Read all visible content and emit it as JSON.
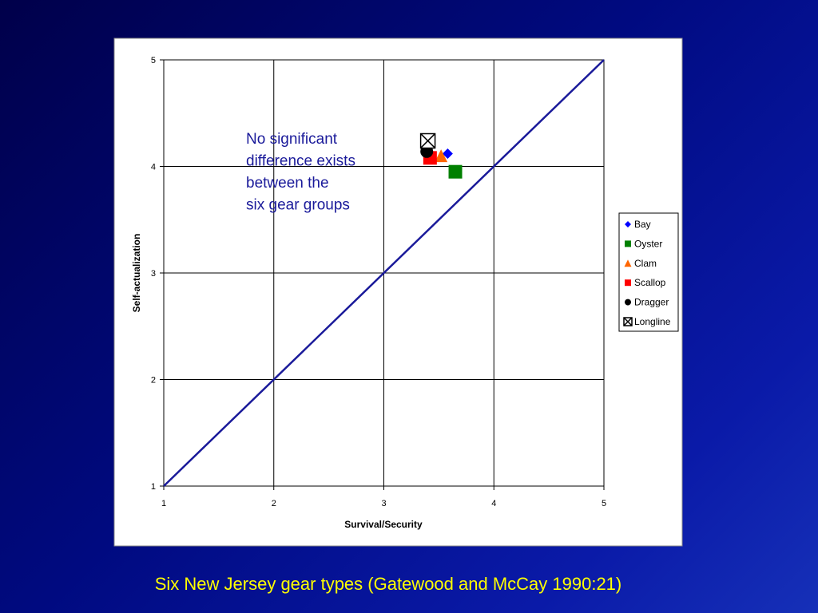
{
  "chart_data": {
    "type": "scatter",
    "xlabel": "Survival/Security",
    "ylabel": "Self-actualization",
    "xlim": [
      1,
      5
    ],
    "ylim": [
      1,
      5
    ],
    "xticks": [
      1,
      2,
      3,
      4,
      5
    ],
    "yticks": [
      1,
      2,
      3,
      4,
      5
    ],
    "grid": true,
    "legend": "right",
    "series": [
      {
        "name": "Bay",
        "color": "#0000ff",
        "marker": "diamond",
        "x": [
          3.58
        ],
        "values": [
          4.12
        ]
      },
      {
        "name": "Oyster",
        "color": "#008000",
        "marker": "square",
        "x": [
          3.65
        ],
        "values": [
          3.95
        ]
      },
      {
        "name": "Clam",
        "color": "#ff6600",
        "marker": "triangle",
        "x": [
          3.52
        ],
        "values": [
          4.1
        ]
      },
      {
        "name": "Scallop",
        "color": "#ff0000",
        "marker": "square",
        "x": [
          3.42
        ],
        "values": [
          4.08
        ]
      },
      {
        "name": "Dragger",
        "color": "#000000",
        "marker": "circle",
        "x": [
          3.39
        ],
        "values": [
          4.14
        ]
      },
      {
        "name": "Longline",
        "color": "#000000",
        "marker": "xsquare",
        "x": [
          3.4
        ],
        "values": [
          4.24
        ]
      }
    ],
    "reference_line": {
      "color": "#1a1a9a",
      "x": [
        1,
        5
      ],
      "values": [
        1,
        5
      ]
    },
    "annotation": [
      "No significant",
      "difference exists",
      "between the",
      "six gear groups"
    ],
    "caption": "Six New Jersey gear types (Gatewood and McCay 1990:21)"
  }
}
